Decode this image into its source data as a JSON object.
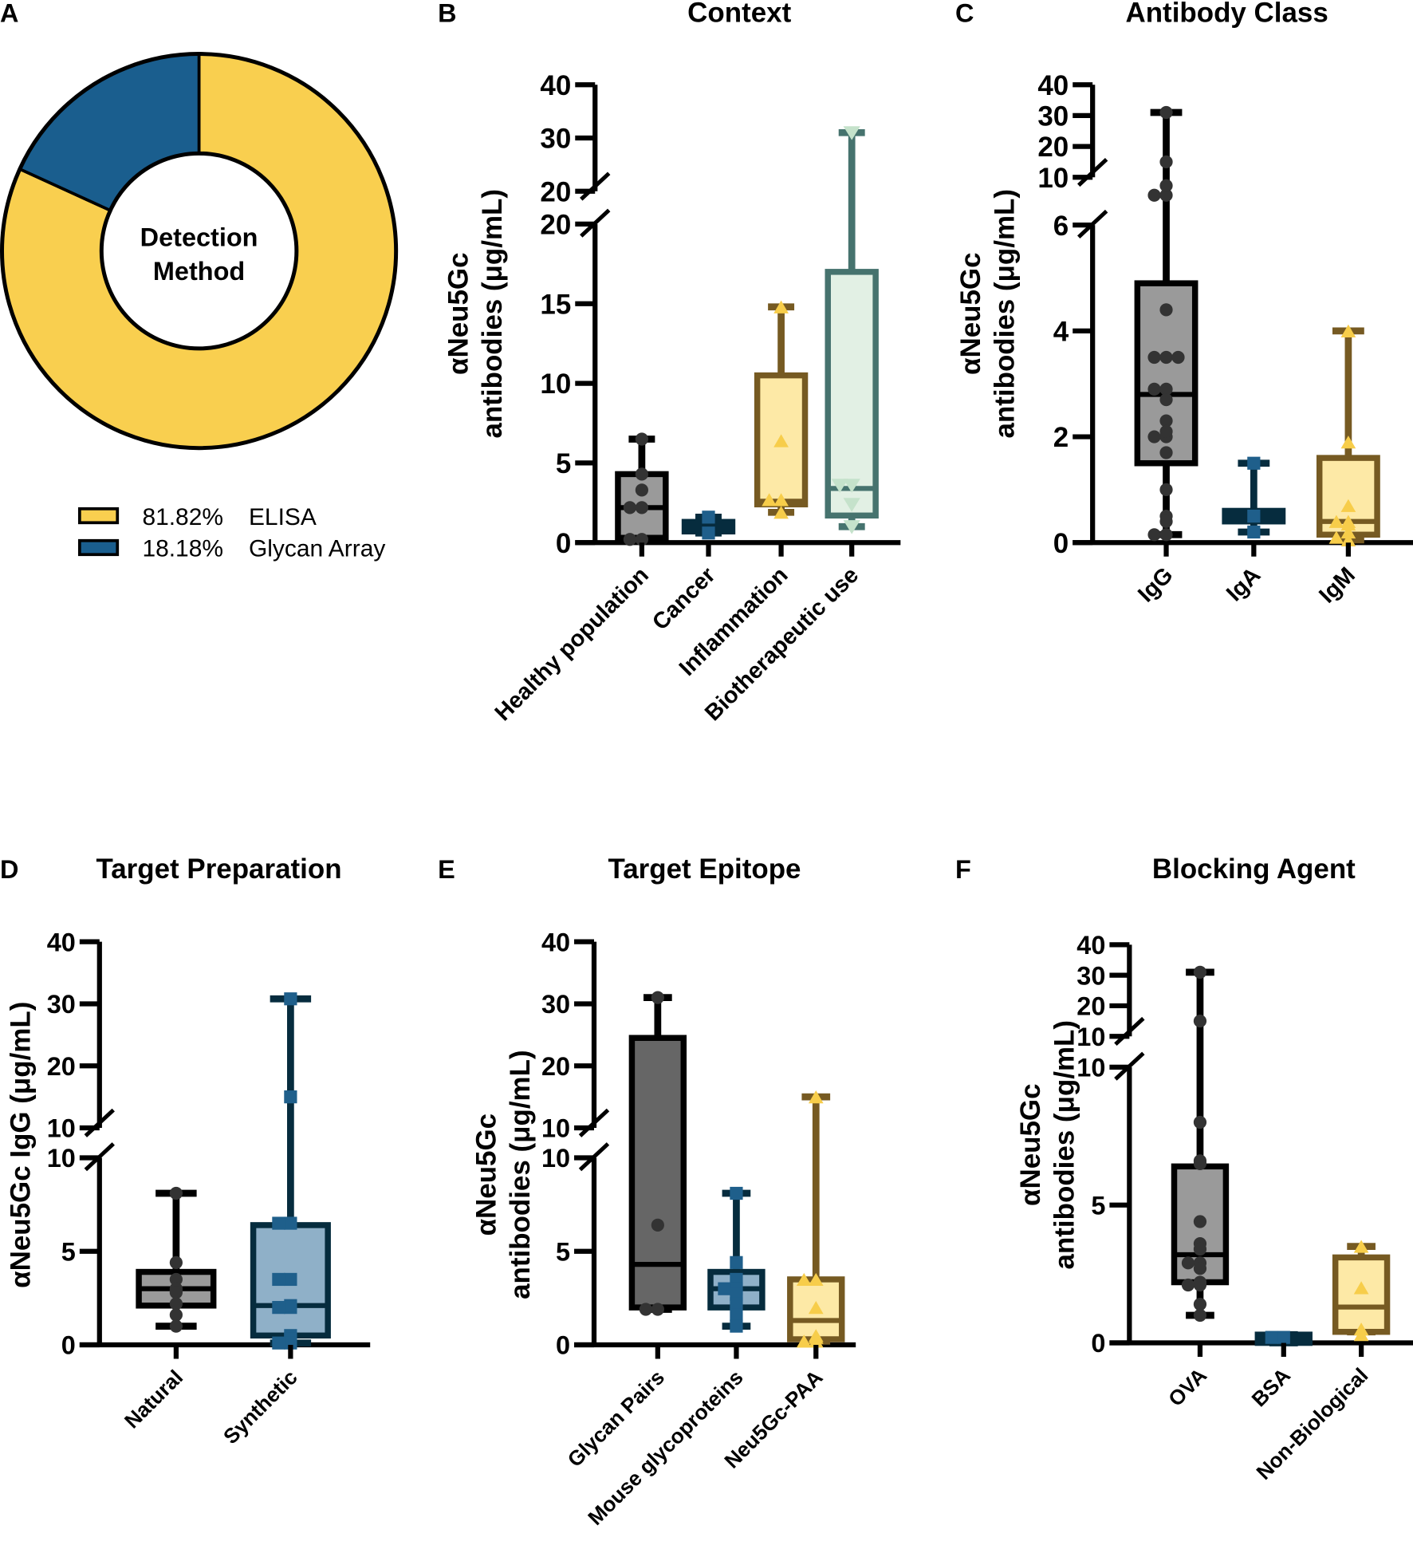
{
  "panel_a": {
    "letter": "A",
    "center_label_1": "Detection",
    "center_label_2": "Method",
    "slices": [
      {
        "name": "ELISA",
        "percent_label": "81.82%",
        "value": 81.82,
        "color": "#f9cf4f"
      },
      {
        "name": "Glycan Array",
        "percent_label": "18.18%",
        "value": 18.18,
        "color": "#1a5e8e"
      }
    ]
  },
  "chart_data": [
    {
      "id": "B",
      "letter": "B",
      "type": "box",
      "title": "Context",
      "ylabel": [
        "αNeu5Gc",
        "antibodies (μg/mL)"
      ],
      "ylim": [
        0,
        40
      ],
      "axis_break": [
        20,
        20
      ],
      "yticks_low": [
        "0",
        "5",
        "10",
        "15",
        "20"
      ],
      "yticks_high": [
        "20",
        "30",
        "40"
      ],
      "categories": [
        "Healthy population",
        "Cancer",
        "Inflammation",
        "Biotherapeutic use"
      ],
      "series": [
        {
          "name": "Healthy population",
          "min": 0.2,
          "q1": 0.3,
          "median": 2.2,
          "q3": 4.3,
          "max": 6.5,
          "points": [
            6.5,
            4.3,
            3.3,
            2.2,
            2.2,
            0.2,
            0.2
          ],
          "marker": "circle",
          "stroke": "#000000",
          "fill": "#9a9a9a",
          "point_color": "#333333"
        },
        {
          "name": "Cancer",
          "min": 0.6,
          "q1": 0.7,
          "median": 1.0,
          "q3": 1.3,
          "max": 1.6,
          "points": [
            1.6,
            0.6
          ],
          "marker": "square",
          "stroke": "#062c3e",
          "fill": "#062c3e",
          "point_color": "#1f5f8b"
        },
        {
          "name": "Inflammation",
          "min": 1.9,
          "q1": 2.4,
          "median": 2.6,
          "q3": 10.5,
          "max": 14.8,
          "points": [
            14.8,
            6.4,
            2.7,
            2.7,
            1.9
          ],
          "marker": "triangle",
          "stroke": "#765a22",
          "fill": "#fde9a6",
          "point_color": "#f7cd4a"
        },
        {
          "name": "Biotherapeutic use",
          "min": 1.0,
          "q1": 1.7,
          "median": 3.4,
          "q3": 17.0,
          "max": 31.0,
          "points": [
            31.0,
            3.6,
            3.6,
            2.4,
            1.0
          ],
          "marker": "invtriangle",
          "stroke": "#46736e",
          "fill": "#e2f0e4",
          "point_color": "#c5e2cb"
        }
      ]
    },
    {
      "id": "C",
      "letter": "C",
      "type": "box",
      "title": "Antibody  Class",
      "ylabel": [
        "αNeu5Gc",
        "antibodies (μg/mL)"
      ],
      "ylim": [
        0,
        40
      ],
      "axis_break": [
        6,
        10
      ],
      "yticks_low": [
        "0",
        "2",
        "4",
        "6"
      ],
      "yticks_high": [
        "10",
        "20",
        "30",
        "40"
      ],
      "categories": [
        "IgG",
        "IgA",
        "IgM"
      ],
      "series": [
        {
          "name": "IgG",
          "min": 0.15,
          "q1": 1.5,
          "median": 2.8,
          "q3": 4.9,
          "max": 31.0,
          "points": [
            31.0,
            15.0,
            8.5,
            8.5,
            9.3,
            4.4,
            3.5,
            3.5,
            3.5,
            2.9,
            2.9,
            2.7,
            2.3,
            2.0,
            2.0,
            2.1,
            1.7,
            1.0,
            0.5,
            0.4,
            0.15,
            0.15
          ],
          "marker": "circle",
          "stroke": "#000000",
          "fill": "#9a9a9a",
          "point_color": "#333333"
        },
        {
          "name": "IgA",
          "min": 0.2,
          "q1": 0.4,
          "median": 0.5,
          "q3": 0.6,
          "max": 1.5,
          "points": [
            1.5,
            0.5,
            0.2
          ],
          "marker": "square",
          "stroke": "#062c3e",
          "fill": "#062c3e",
          "point_color": "#1f5f8b"
        },
        {
          "name": "IgM",
          "min": 0.05,
          "q1": 0.15,
          "median": 0.4,
          "q3": 1.6,
          "max": 4.0,
          "points": [
            4.0,
            1.9,
            0.7,
            0.4,
            0.4,
            0.35,
            0.2,
            0.05,
            0.1
          ],
          "marker": "triangle",
          "stroke": "#765a22",
          "fill": "#fde9a6",
          "point_color": "#f7cd4a"
        }
      ]
    },
    {
      "id": "D",
      "letter": "D",
      "type": "box",
      "title": "Target Preparation",
      "ylabel": [
        "αNeu5Gc IgG (μg/mL)"
      ],
      "ylim": [
        0,
        40
      ],
      "axis_break": [
        10,
        10
      ],
      "yticks_low": [
        "0",
        "5",
        "10"
      ],
      "yticks_high": [
        "10",
        "20",
        "30",
        "40"
      ],
      "categories": [
        "Natural",
        "Synthetic"
      ],
      "series": [
        {
          "name": "Natural",
          "min": 1.0,
          "q1": 2.1,
          "median": 3.0,
          "q3": 3.9,
          "max": 8.1,
          "points": [
            8.1,
            4.4,
            3.5,
            2.9,
            3.0,
            2.8,
            2.2,
            1.6,
            1.0
          ],
          "marker": "circle",
          "stroke": "#000000",
          "fill": "#9a9a9a",
          "point_color": "#333333"
        },
        {
          "name": "Synthetic",
          "min": 0.1,
          "q1": 0.5,
          "median": 2.1,
          "q3": 6.4,
          "max": 30.8,
          "points": [
            30.8,
            15.0,
            6.5,
            6.5,
            3.5,
            3.5,
            2.0,
            2.1,
            2.0,
            0.5,
            0.3,
            0.1,
            0.1
          ],
          "marker": "square",
          "stroke": "#062c3e",
          "fill": "#8fb0c8",
          "point_color": "#1f5f8b"
        }
      ]
    },
    {
      "id": "E",
      "letter": "E",
      "type": "box",
      "title": "Target Epitope",
      "ylabel": [
        "αNeu5Gc",
        "antibodies (μg/mL)"
      ],
      "ylim": [
        0,
        40
      ],
      "axis_break": [
        10,
        10
      ],
      "yticks_low": [
        "0",
        "5",
        "10"
      ],
      "yticks_high": [
        "10",
        "20",
        "30",
        "40"
      ],
      "categories": [
        "Glycan Pairs",
        "Mouse glycoproteins",
        "Neu5Gc-PAA"
      ],
      "series": [
        {
          "name": "Glycan Pairs",
          "min": 1.9,
          "q1": 2.0,
          "median": 4.3,
          "q3": 24.5,
          "max": 31.0,
          "points": [
            31.0,
            6.4,
            1.9,
            1.9
          ],
          "marker": "circle",
          "stroke": "#000000",
          "fill": "#666666",
          "point_color": "#333333"
        },
        {
          "name": "Mouse glycoproteins",
          "min": 1.0,
          "q1": 2.0,
          "median": 3.0,
          "q3": 3.9,
          "max": 8.1,
          "points": [
            8.1,
            4.4,
            3.5,
            3.0,
            3.0,
            2.7,
            2.2,
            1.6,
            1.0
          ],
          "marker": "square",
          "stroke": "#062c3e",
          "fill": "#8fb0c8",
          "point_color": "#1f5f8b"
        },
        {
          "name": "Neu5Gc-PAA",
          "min": 0.2,
          "q1": 0.3,
          "median": 1.3,
          "q3": 3.5,
          "max": 15.0,
          "points": [
            15.0,
            3.5,
            3.5,
            2.0,
            0.5,
            0.2,
            0.2,
            0.4
          ],
          "marker": "triangle",
          "stroke": "#765a22",
          "fill": "#fde9a6",
          "point_color": "#f7cd4a"
        }
      ]
    },
    {
      "id": "F",
      "letter": "F",
      "type": "box",
      "title": "Blocking Agent",
      "ylabel": [
        "αNeu5Gc",
        "antibodies (μg/mL)"
      ],
      "ylim": [
        0,
        40
      ],
      "axis_break": [
        10,
        10
      ],
      "yticks_low": [
        "0",
        "5",
        "10"
      ],
      "yticks_high": [
        "10",
        "20",
        "30",
        "40"
      ],
      "categories": [
        "OVA",
        "BSA",
        "Non-Biological"
      ],
      "series": [
        {
          "name": "OVA",
          "min": 1.0,
          "q1": 2.2,
          "median": 3.2,
          "q3": 6.4,
          "max": 31.0,
          "points": [
            31.0,
            15.0,
            8.0,
            6.5,
            6.6,
            4.4,
            3.6,
            3.4,
            2.9,
            2.9,
            2.7,
            2.2,
            2.1,
            2.1,
            1.4,
            1.0
          ],
          "marker": "circle",
          "stroke": "#000000",
          "fill": "#9a9a9a",
          "point_color": "#333333"
        },
        {
          "name": "BSA",
          "min": 0.0,
          "q1": 0.0,
          "median": 0.15,
          "q3": 0.3,
          "max": 0.3,
          "points": [
            0.2,
            0.2
          ],
          "marker": "square",
          "stroke": "#062c3e",
          "fill": "#062c3e",
          "point_color": "#1f5f8b"
        },
        {
          "name": "Non-Biological",
          "min": 0.4,
          "q1": 0.4,
          "median": 1.3,
          "q3": 3.1,
          "max": 3.5,
          "points": [
            3.5,
            2.0,
            0.3,
            0.5
          ],
          "marker": "triangle",
          "stroke": "#765a22",
          "fill": "#fde9a6",
          "point_color": "#f7cd4a"
        }
      ]
    }
  ]
}
